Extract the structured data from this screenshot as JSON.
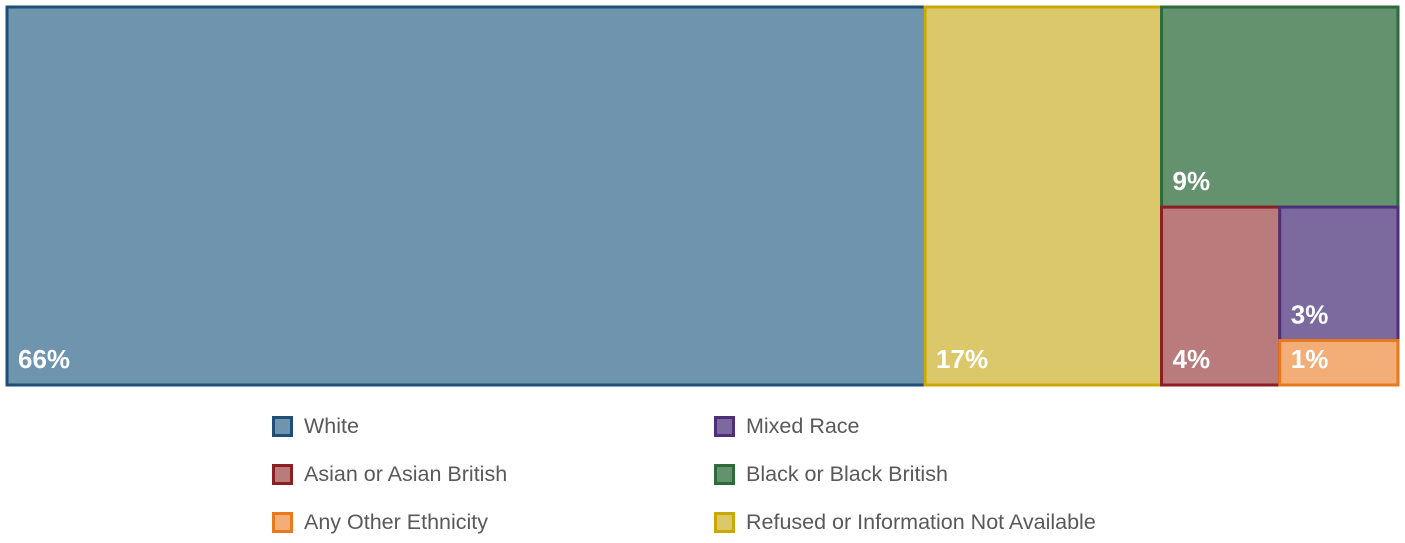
{
  "chart_data": {
    "type": "treemap",
    "title": "",
    "series": [
      {
        "name": "White",
        "value": 66,
        "label": "66%",
        "fill": "#6f94ad",
        "stroke": "#1f4e79"
      },
      {
        "name": "Refused or Information Not Available",
        "value": 17,
        "label": "17%",
        "fill": "#dbc86b",
        "stroke": "#c9a800"
      },
      {
        "name": "Black or Black British",
        "value": 9,
        "label": "9%",
        "fill": "#64926e",
        "stroke": "#2e6b3b"
      },
      {
        "name": "Asian or Asian British",
        "value": 4,
        "label": "4%",
        "fill": "#b97b7c",
        "stroke": "#8b1f24"
      },
      {
        "name": "Mixed Race",
        "value": 3,
        "label": "3%",
        "fill": "#7c6a9e",
        "stroke": "#4f2f7a"
      },
      {
        "name": "Any Other Ethnicity",
        "value": 1,
        "label": "1%",
        "fill": "#f3ae77",
        "stroke": "#e87a1d"
      }
    ],
    "legend": {
      "placement": "bottom",
      "order": [
        "White",
        "Mixed Race",
        "Asian or Asian British",
        "Black or Black British",
        "Any Other Ethnicity",
        "Refused or Information Not Available"
      ]
    }
  }
}
